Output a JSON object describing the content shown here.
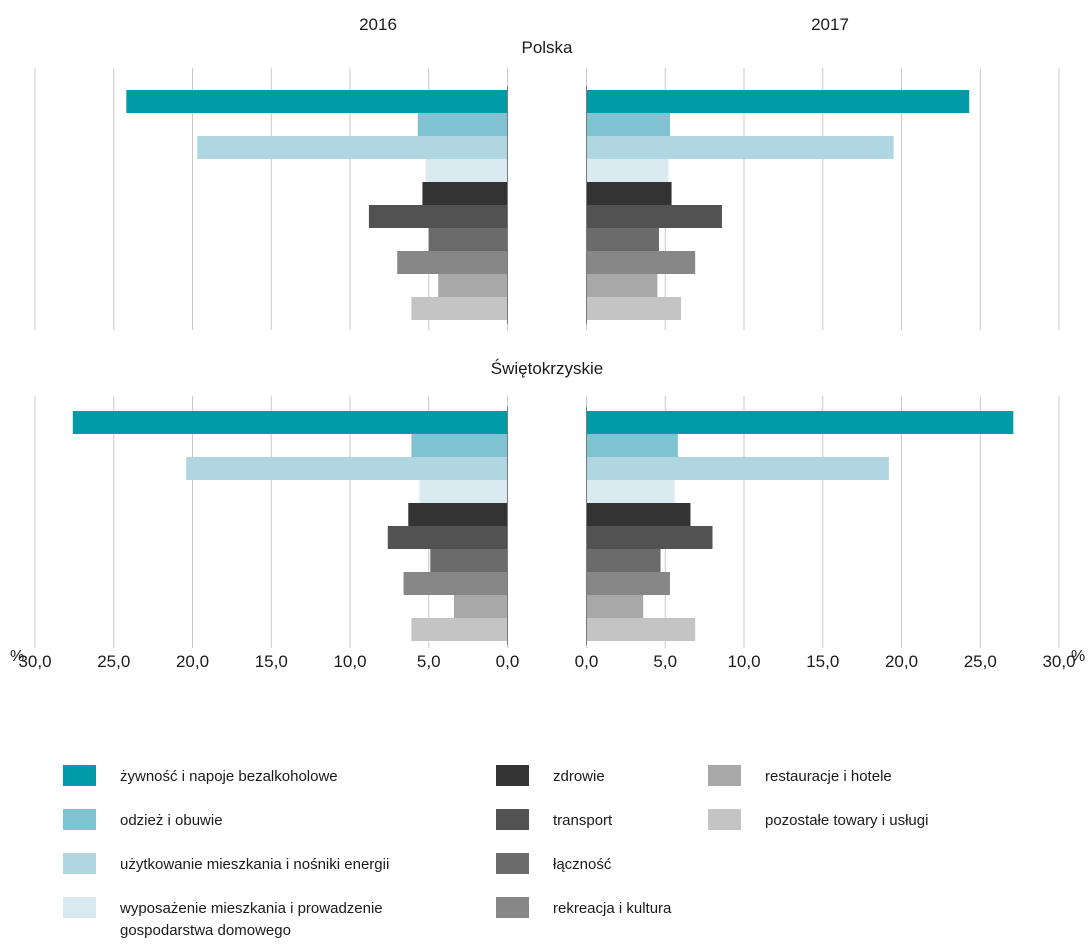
{
  "chart_data": {
    "type": "bar",
    "orientation": "horizontal-butterfly",
    "years": [
      "2016",
      "2017"
    ],
    "unit": "%",
    "xlim": [
      0,
      30
    ],
    "ticks": [
      "0,0",
      "5,0",
      "10,0",
      "15,0",
      "20,0",
      "25,0",
      "30,0"
    ],
    "tick_values": [
      0,
      5,
      10,
      15,
      20,
      25,
      30
    ],
    "grid": true,
    "legend_position": "bottom",
    "categories": [
      {
        "name": "żywność i napoje bezalkoholowe",
        "color": "#009aa9"
      },
      {
        "name": "odzież i obuwie",
        "color": "#7fc2d1"
      },
      {
        "name": "użytkowanie mieszkania i nośniki energii",
        "color": "#b0d7e1"
      },
      {
        "name": "wyposażenie mieszkania i prowadzenie gospodarstwa domowego",
        "color": "#d9ebf1"
      },
      {
        "name": "zdrowie",
        "color": "#333333"
      },
      {
        "name": "transport",
        "color": "#525252"
      },
      {
        "name": "łączność",
        "color": "#6b6b6b"
      },
      {
        "name": "rekreacja i kultura",
        "color": "#878787"
      },
      {
        "name": "restauracje i hotele",
        "color": "#a8a8a8"
      },
      {
        "name": "pozostałe towary i usługi",
        "color": "#c4c4c4"
      }
    ],
    "panels": [
      {
        "region": "Polska",
        "values_2016": [
          24.2,
          5.7,
          19.7,
          5.2,
          5.4,
          8.8,
          5.0,
          7.0,
          4.4,
          6.1
        ],
        "values_2017": [
          24.3,
          5.3,
          19.5,
          5.2,
          5.4,
          8.6,
          4.6,
          6.9,
          4.5,
          6.0
        ]
      },
      {
        "region": "Świętokrzyskie",
        "values_2016": [
          27.6,
          6.1,
          20.4,
          5.6,
          6.3,
          7.6,
          4.9,
          6.6,
          3.4,
          6.1
        ],
        "values_2017": [
          27.1,
          5.8,
          19.2,
          5.6,
          6.6,
          8.0,
          4.7,
          5.3,
          3.6,
          6.9
        ]
      }
    ]
  }
}
